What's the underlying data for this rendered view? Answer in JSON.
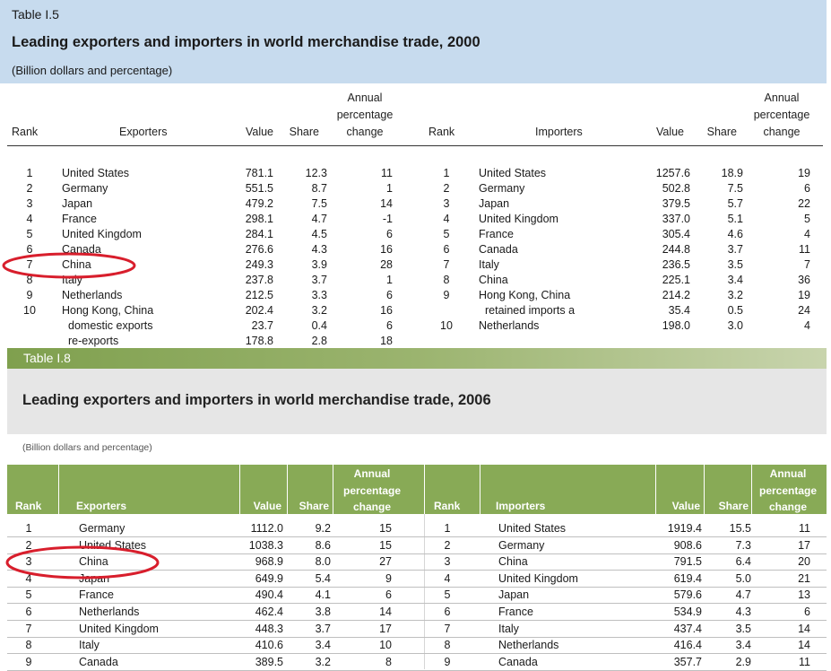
{
  "table1": {
    "label": "Table I.5",
    "title": "Leading exporters and importers in world merchandise trade, 2000",
    "unit": "(Billion dollars and percentage)",
    "headers": {
      "rank": "Rank",
      "exporters": "Exporters",
      "value": "Value",
      "share": "Share",
      "change1": "Annual",
      "change2": "percentage",
      "change3": "change",
      "importers": "Importers"
    },
    "exporters": [
      {
        "rank": "1",
        "name": "United States",
        "value": "781.1",
        "share": "12.3",
        "change": "11"
      },
      {
        "rank": "2",
        "name": "Germany",
        "value": "551.5",
        "share": "8.7",
        "change": "1"
      },
      {
        "rank": "3",
        "name": "Japan",
        "value": "479.2",
        "share": "7.5",
        "change": "14"
      },
      {
        "rank": "4",
        "name": "France",
        "value": "298.1",
        "share": "4.7",
        "change": "-1"
      },
      {
        "rank": "5",
        "name": "United Kingdom",
        "value": "284.1",
        "share": "4.5",
        "change": "6"
      },
      {
        "rank": "6",
        "name": "Canada",
        "value": "276.6",
        "share": "4.3",
        "change": "16"
      },
      {
        "rank": "7",
        "name": "China",
        "value": "249.3",
        "share": "3.9",
        "change": "28"
      },
      {
        "rank": "8",
        "name": "Italy",
        "value": "237.8",
        "share": "3.7",
        "change": "1"
      },
      {
        "rank": "9",
        "name": "Netherlands",
        "value": "212.5",
        "share": "3.3",
        "change": "6"
      },
      {
        "rank": "10",
        "name": "Hong Kong, China",
        "value": "202.4",
        "share": "3.2",
        "change": "16"
      },
      {
        "rank": "",
        "name": "domestic exports",
        "value": "23.7",
        "share": "0.4",
        "change": "6"
      },
      {
        "rank": "",
        "name": "re-exports",
        "value": "178.8",
        "share": "2.8",
        "change": "18"
      }
    ],
    "importers": [
      {
        "rank": "1",
        "name": "United States",
        "value": "1257.6",
        "share": "18.9",
        "change": "19"
      },
      {
        "rank": "2",
        "name": "Germany",
        "value": "502.8",
        "share": "7.5",
        "change": "6"
      },
      {
        "rank": "3",
        "name": "Japan",
        "value": "379.5",
        "share": "5.7",
        "change": "22"
      },
      {
        "rank": "4",
        "name": "United Kingdom",
        "value": "337.0",
        "share": "5.1",
        "change": "5"
      },
      {
        "rank": "5",
        "name": "France",
        "value": "305.4",
        "share": "4.6",
        "change": "4"
      },
      {
        "rank": "6",
        "name": "Canada",
        "value": "244.8",
        "share": "3.7",
        "change": "11"
      },
      {
        "rank": "7",
        "name": "Italy",
        "value": "236.5",
        "share": "3.5",
        "change": "7"
      },
      {
        "rank": "8",
        "name": "China",
        "value": "225.1",
        "share": "3.4",
        "change": "36"
      },
      {
        "rank": "9",
        "name": "Hong Kong, China",
        "value": "214.2",
        "share": "3.2",
        "change": "19"
      },
      {
        "rank": "",
        "name": "retained imports a",
        "value": "35.4",
        "share": "0.5",
        "change": "24"
      },
      {
        "rank": "10",
        "name": "Netherlands",
        "value": "198.0",
        "share": "3.0",
        "change": "4"
      }
    ]
  },
  "table2": {
    "label": "Table I.8",
    "title": "Leading exporters and importers in world merchandise trade, 2006",
    "unit": "(Billion dollars and percentage)",
    "headers": {
      "rank": "Rank",
      "exporters": "Exporters",
      "value": "Value",
      "share": "Share",
      "change1": "Annual",
      "change2": "percentage",
      "change3": "change",
      "importers": "Importers"
    },
    "exporters": [
      {
        "rank": "1",
        "name": "Germany",
        "value": "1112.0",
        "share": "9.2",
        "change": "15"
      },
      {
        "rank": "2",
        "name": "United States",
        "value": "1038.3",
        "share": "8.6",
        "change": "15"
      },
      {
        "rank": "3",
        "name": "China",
        "value": "968.9",
        "share": "8.0",
        "change": "27"
      },
      {
        "rank": "4",
        "name": "Japan",
        "value": "649.9",
        "share": "5.4",
        "change": "9"
      },
      {
        "rank": "5",
        "name": "France",
        "value": "490.4",
        "share": "4.1",
        "change": "6"
      },
      {
        "rank": "6",
        "name": "Netherlands",
        "value": "462.4",
        "share": "3.8",
        "change": "14"
      },
      {
        "rank": "7",
        "name": "United Kingdom",
        "value": "448.3",
        "share": "3.7",
        "change": "17"
      },
      {
        "rank": "8",
        "name": "Italy",
        "value": "410.6",
        "share": "3.4",
        "change": "10"
      },
      {
        "rank": "9",
        "name": "Canada",
        "value": "389.5",
        "share": "3.2",
        "change": "8"
      }
    ],
    "importers": [
      {
        "rank": "1",
        "name": "United States",
        "value": "1919.4",
        "share": "15.5",
        "change": "11"
      },
      {
        "rank": "2",
        "name": "Germany",
        "value": "908.6",
        "share": "7.3",
        "change": "17"
      },
      {
        "rank": "3",
        "name": "China",
        "value": "791.5",
        "share": "6.4",
        "change": "20"
      },
      {
        "rank": "4",
        "name": "United Kingdom",
        "value": "619.4",
        "share": "5.0",
        "change": "21"
      },
      {
        "rank": "5",
        "name": "Japan",
        "value": "579.6",
        "share": "4.7",
        "change": "13"
      },
      {
        "rank": "6",
        "name": "France",
        "value": "534.9",
        "share": "4.3",
        "change": "6"
      },
      {
        "rank": "7",
        "name": "Italy",
        "value": "437.4",
        "share": "3.5",
        "change": "14"
      },
      {
        "rank": "8",
        "name": "Netherlands",
        "value": "416.4",
        "share": "3.4",
        "change": "14"
      },
      {
        "rank": "9",
        "name": "Canada",
        "value": "357.7",
        "share": "2.9",
        "change": "11"
      }
    ]
  },
  "colors": {
    "table1_header_bg": "#c7dbee",
    "table2_band": "#7fa04e",
    "table2_header_bg": "#88aa56",
    "highlight_circle": "#d81e2c"
  }
}
